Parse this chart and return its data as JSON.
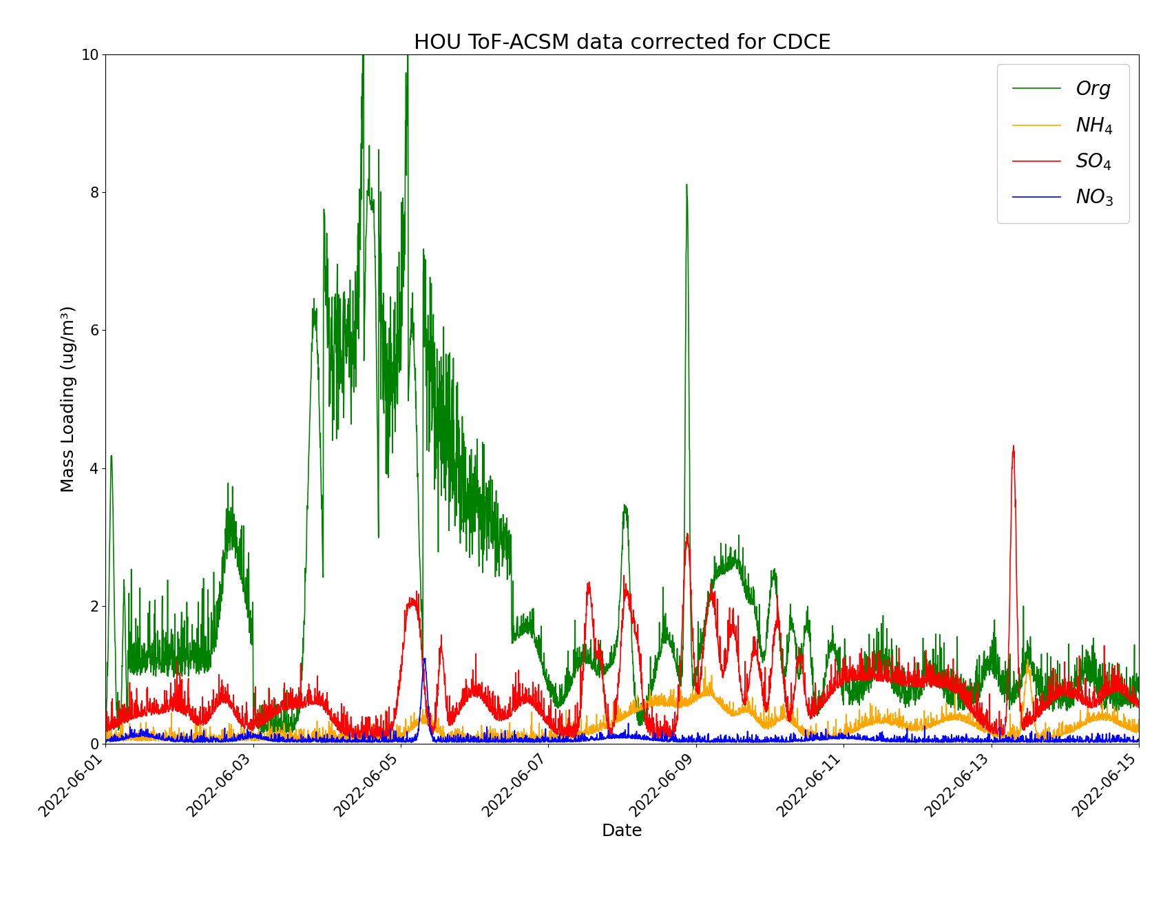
{
  "title": "HOU ToF-ACSM data corrected for CDCE",
  "xlabel": "Date",
  "ylabel": "Mass Loading (ug/m³)",
  "ylim": [
    0,
    10
  ],
  "date_start": "2022-06-01",
  "date_end": "2022-06-15",
  "colors": {
    "Org": "#008000",
    "NH4": "#FFA500",
    "SO4": "#FF0000",
    "NO3": "#0000FF"
  },
  "legend_labels": {
    "Org": "$\\it{Org}$",
    "NH4": "$\\it{NH}_{4}$",
    "SO4": "$\\it{SO}_{4}$",
    "NO3": "$\\it{NO}_{3}$"
  },
  "title_fontsize": 22,
  "axis_label_fontsize": 18,
  "tick_fontsize": 15,
  "legend_fontsize": 20,
  "line_width": 1.2
}
